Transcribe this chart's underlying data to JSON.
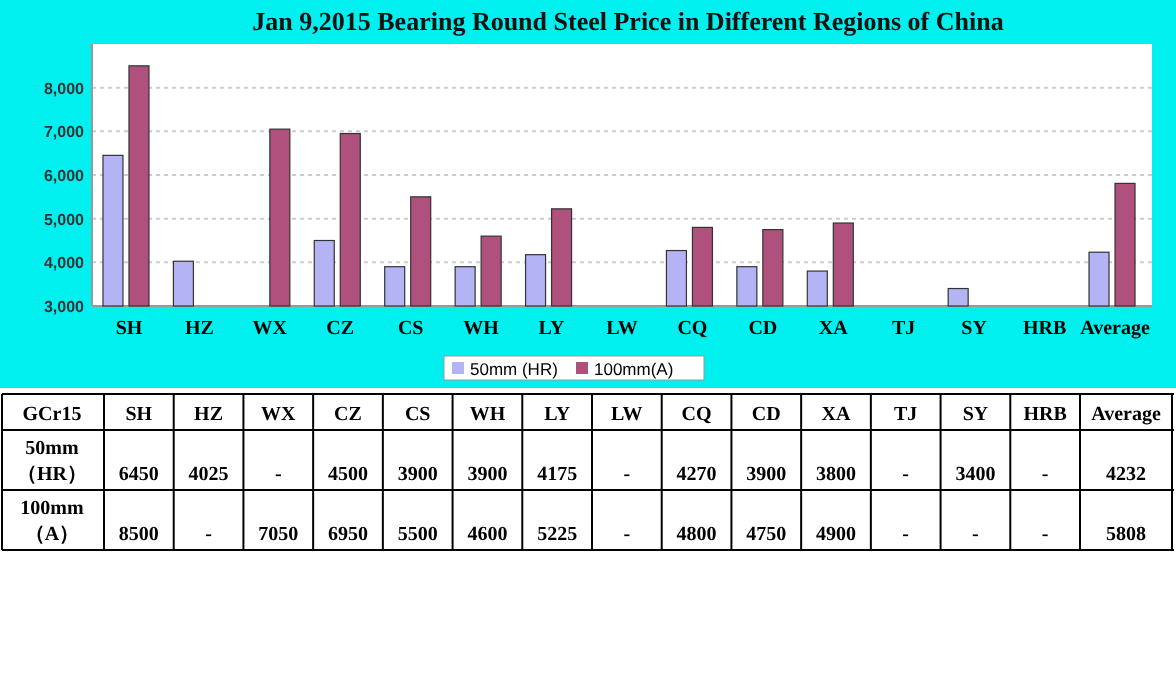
{
  "chart_data": {
    "type": "bar",
    "title": "Jan 9,2015  Bearing Round Steel Price in Different Regions of China",
    "categories": [
      "SH",
      "HZ",
      "WX",
      "CZ",
      "CS",
      "WH",
      "LY",
      "LW",
      "CQ",
      "CD",
      "XA",
      "TJ",
      "SY",
      "HRB",
      "Average"
    ],
    "series": [
      {
        "name": "50mm (HR)",
        "color": "#b4b4f4",
        "values": [
          6450,
          4025,
          null,
          4500,
          3900,
          3900,
          4175,
          null,
          4270,
          3900,
          3800,
          null,
          3400,
          null,
          4232
        ],
        "value_labels": [
          "6450",
          "4025",
          "-",
          "4500",
          "3900",
          "3900",
          "4175",
          "-",
          "4270",
          "3900",
          "3800",
          "-",
          "3400",
          "-",
          "4232"
        ]
      },
      {
        "name": "100mm(A)",
        "color": "#b0507c",
        "values": [
          8500,
          null,
          7050,
          6950,
          5500,
          4600,
          5225,
          null,
          4800,
          4750,
          4900,
          null,
          null,
          null,
          5808
        ],
        "value_labels": [
          "8500",
          "-",
          "7050",
          "6950",
          "5500",
          "4600",
          "5225",
          "-",
          "4800",
          "4750",
          "4900",
          "-",
          "-",
          "-",
          "5808"
        ]
      }
    ],
    "ylim": [
      3000,
      9000
    ],
    "yticks": [
      {
        "value": 3000,
        "label": "3,000"
      },
      {
        "value": 4000,
        "label": "4,000"
      },
      {
        "value": 5000,
        "label": "5,000"
      },
      {
        "value": 6000,
        "label": "6,000"
      },
      {
        "value": 7000,
        "label": "7,000"
      },
      {
        "value": 8000,
        "label": "8,000"
      }
    ],
    "grid": "y",
    "legend": "bottom",
    "annotations": [
      "GCr15",
      "50mm（HR）",
      "100mm（A）"
    ]
  }
}
